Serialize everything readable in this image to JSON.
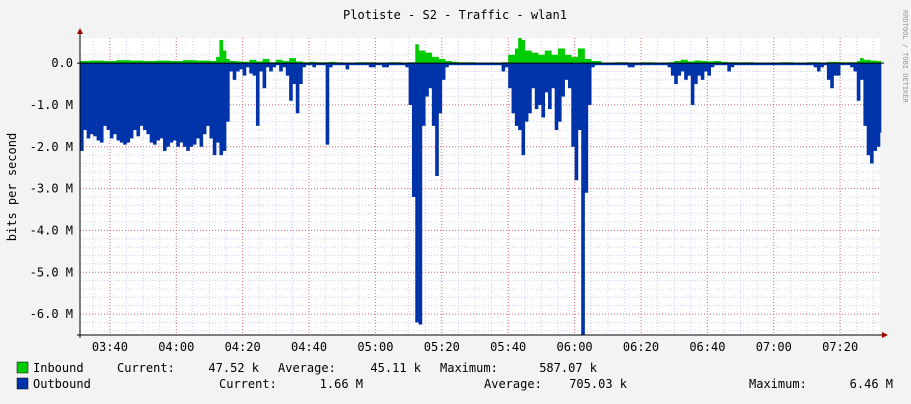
{
  "chart_data": {
    "type": "area",
    "title": "Plotiste - S2 - Traffic - wlan1",
    "ylabel": "bits per second",
    "xlabel": "",
    "credit": "RRDTOOL / TOBI OETIKER",
    "ylim": [
      -6.5,
      0.6
    ],
    "yticks": [
      {
        "value": 0,
        "label": "0.0"
      },
      {
        "value": -1,
        "label": "-1.0 M"
      },
      {
        "value": -2,
        "label": "-2.0 M"
      },
      {
        "value": -3,
        "label": "-3.0 M"
      },
      {
        "value": -4,
        "label": "-4.0 M"
      },
      {
        "value": -5,
        "label": "-5.0 M"
      },
      {
        "value": -6,
        "label": "-6.0 M"
      }
    ],
    "xticks": [
      "03:40",
      "04:00",
      "04:20",
      "04:40",
      "05:00",
      "05:20",
      "05:40",
      "06:00",
      "06:20",
      "06:40",
      "07:00",
      "07:20"
    ],
    "xtick_minutes": [
      220,
      240,
      260,
      280,
      300,
      320,
      340,
      360,
      380,
      400,
      420,
      440
    ],
    "xlim_minutes": [
      211,
      452
    ],
    "grid": true,
    "colors": {
      "inbound": "#00cc00",
      "outbound": "#0033aa",
      "grid_major": "#e07070",
      "grid_minor": "#ccccff",
      "axis": "#000000",
      "background": "#ffffff",
      "arrow": "#a00000"
    },
    "series": [
      {
        "name": "Inbound",
        "unit": "M bits/s",
        "points": [
          [
            211,
            0.05
          ],
          [
            214,
            0.06
          ],
          [
            218,
            0.05
          ],
          [
            222,
            0.07
          ],
          [
            226,
            0.06
          ],
          [
            230,
            0.05
          ],
          [
            234,
            0.06
          ],
          [
            238,
            0.05
          ],
          [
            242,
            0.07
          ],
          [
            246,
            0.06
          ],
          [
            250,
            0.05
          ],
          [
            252,
            0.15
          ],
          [
            253,
            0.55
          ],
          [
            254,
            0.3
          ],
          [
            255,
            0.1
          ],
          [
            256,
            0.05
          ],
          [
            258,
            0.04
          ],
          [
            260,
            0.03
          ],
          [
            262,
            0.08
          ],
          [
            264,
            0.04
          ],
          [
            266,
            0.1
          ],
          [
            268,
            0.02
          ],
          [
            270,
            0.08
          ],
          [
            272,
            0.05
          ],
          [
            274,
            0.12
          ],
          [
            276,
            0.04
          ],
          [
            278,
            0.02
          ],
          [
            280,
            0.03
          ],
          [
            282,
            0.02
          ],
          [
            286,
            0.03
          ],
          [
            288,
            0.02
          ],
          [
            290,
            0.01
          ],
          [
            294,
            0.02
          ],
          [
            298,
            0.02
          ],
          [
            300,
            0.01
          ],
          [
            304,
            0.02
          ],
          [
            308,
            0.01
          ],
          [
            310,
            0.02
          ],
          [
            312,
            0.45
          ],
          [
            313,
            0.3
          ],
          [
            315,
            0.25
          ],
          [
            317,
            0.15
          ],
          [
            319,
            0.1
          ],
          [
            321,
            0.05
          ],
          [
            323,
            0.03
          ],
          [
            325,
            0.02
          ],
          [
            330,
            0.01
          ],
          [
            335,
            0.01
          ],
          [
            338,
            0.02
          ],
          [
            340,
            0.2
          ],
          [
            342,
            0.35
          ],
          [
            343,
            0.6
          ],
          [
            344,
            0.55
          ],
          [
            345,
            0.3
          ],
          [
            347,
            0.25
          ],
          [
            349,
            0.2
          ],
          [
            351,
            0.3
          ],
          [
            353,
            0.2
          ],
          [
            355,
            0.35
          ],
          [
            357,
            0.2
          ],
          [
            359,
            0.15
          ],
          [
            361,
            0.35
          ],
          [
            363,
            0.1
          ],
          [
            365,
            0.05
          ],
          [
            368,
            0.01
          ],
          [
            372,
            0.02
          ],
          [
            376,
            0.01
          ],
          [
            380,
            0.02
          ],
          [
            384,
            0.01
          ],
          [
            388,
            0.02
          ],
          [
            390,
            0.05
          ],
          [
            392,
            0.08
          ],
          [
            394,
            0.04
          ],
          [
            396,
            0.06
          ],
          [
            398,
            0.05
          ],
          [
            400,
            0.04
          ],
          [
            402,
            0.05
          ],
          [
            404,
            0.03
          ],
          [
            406,
            0.02
          ],
          [
            410,
            0.02
          ],
          [
            414,
            0.01
          ],
          [
            418,
            0.01
          ],
          [
            422,
            0.02
          ],
          [
            426,
            0.01
          ],
          [
            430,
            0.02
          ],
          [
            434,
            0.01
          ],
          [
            436,
            0.03
          ],
          [
            440,
            0.02
          ],
          [
            443,
            0.02
          ],
          [
            445,
            0.05
          ],
          [
            446,
            0.12
          ],
          [
            447,
            0.08
          ],
          [
            449,
            0.06
          ],
          [
            451,
            0.05
          ],
          [
            452,
            0.05
          ]
        ]
      },
      {
        "name": "Outbound",
        "unit": "M bits/s",
        "points": [
          [
            211,
            -2.1
          ],
          [
            212,
            -1.6
          ],
          [
            213,
            -1.8
          ],
          [
            214,
            -1.7
          ],
          [
            215,
            -1.75
          ],
          [
            216,
            -1.85
          ],
          [
            217,
            -1.9
          ],
          [
            218,
            -1.5
          ],
          [
            219,
            -1.6
          ],
          [
            220,
            -1.8
          ],
          [
            221,
            -1.7
          ],
          [
            222,
            -1.85
          ],
          [
            223,
            -1.9
          ],
          [
            224,
            -1.95
          ],
          [
            225,
            -1.9
          ],
          [
            226,
            -1.8
          ],
          [
            227,
            -1.6
          ],
          [
            228,
            -1.75
          ],
          [
            229,
            -1.5
          ],
          [
            230,
            -1.6
          ],
          [
            231,
            -1.7
          ],
          [
            232,
            -1.9
          ],
          [
            233,
            -1.95
          ],
          [
            234,
            -1.85
          ],
          [
            235,
            -1.8
          ],
          [
            236,
            -2.1
          ],
          [
            237,
            -2.0
          ],
          [
            238,
            -1.9
          ],
          [
            239,
            -1.85
          ],
          [
            240,
            -2.0
          ],
          [
            241,
            -1.9
          ],
          [
            242,
            -2.0
          ],
          [
            243,
            -2.1
          ],
          [
            244,
            -2.0
          ],
          [
            245,
            -1.95
          ],
          [
            246,
            -1.8
          ],
          [
            247,
            -2.0
          ],
          [
            248,
            -1.7
          ],
          [
            249,
            -1.5
          ],
          [
            250,
            -1.8
          ],
          [
            251,
            -2.2
          ],
          [
            252,
            -1.9
          ],
          [
            253,
            -2.2
          ],
          [
            254,
            -2.1
          ],
          [
            255,
            -1.4
          ],
          [
            256,
            -0.2
          ],
          [
            257,
            -0.4
          ],
          [
            258,
            -0.2
          ],
          [
            259,
            -0.15
          ],
          [
            260,
            -0.3
          ],
          [
            261,
            -0.1
          ],
          [
            262,
            -0.25
          ],
          [
            263,
            -0.3
          ],
          [
            264,
            -1.5
          ],
          [
            265,
            -0.2
          ],
          [
            266,
            -0.6
          ],
          [
            267,
            -0.1
          ],
          [
            268,
            -0.2
          ],
          [
            269,
            -0.1
          ],
          [
            270,
            -0.05
          ],
          [
            271,
            -0.2
          ],
          [
            272,
            -0.1
          ],
          [
            273,
            -0.3
          ],
          [
            274,
            -0.9
          ],
          [
            275,
            -0.5
          ],
          [
            276,
            -1.2
          ],
          [
            277,
            -0.5
          ],
          [
            278,
            -0.1
          ],
          [
            279,
            -0.05
          ],
          [
            280,
            -0.05
          ],
          [
            281,
            -0.1
          ],
          [
            282,
            -0.05
          ],
          [
            284,
            -0.05
          ],
          [
            285,
            -1.95
          ],
          [
            286,
            -0.1
          ],
          [
            287,
            -0.05
          ],
          [
            288,
            -0.05
          ],
          [
            290,
            -0.05
          ],
          [
            291,
            -0.15
          ],
          [
            292,
            -0.05
          ],
          [
            294,
            -0.05
          ],
          [
            296,
            -0.05
          ],
          [
            298,
            -0.1
          ],
          [
            300,
            -0.05
          ],
          [
            302,
            -0.1
          ],
          [
            304,
            -0.05
          ],
          [
            306,
            -0.05
          ],
          [
            308,
            -0.05
          ],
          [
            309,
            -0.1
          ],
          [
            310,
            -1.0
          ],
          [
            311,
            -3.2
          ],
          [
            312,
            -6.2
          ],
          [
            313,
            -6.25
          ],
          [
            314,
            -1.5
          ],
          [
            315,
            -0.8
          ],
          [
            316,
            -0.6
          ],
          [
            317,
            -1.5
          ],
          [
            318,
            -2.7
          ],
          [
            319,
            -1.2
          ],
          [
            320,
            -0.4
          ],
          [
            321,
            -0.1
          ],
          [
            322,
            -0.05
          ],
          [
            324,
            -0.05
          ],
          [
            326,
            -0.05
          ],
          [
            328,
            -0.05
          ],
          [
            330,
            -0.05
          ],
          [
            332,
            -0.05
          ],
          [
            334,
            -0.05
          ],
          [
            336,
            -0.05
          ],
          [
            338,
            -0.2
          ],
          [
            339,
            -0.1
          ],
          [
            340,
            -0.6
          ],
          [
            341,
            -1.2
          ],
          [
            342,
            -1.5
          ],
          [
            343,
            -1.6
          ],
          [
            344,
            -2.2
          ],
          [
            345,
            -1.4
          ],
          [
            346,
            -1.2
          ],
          [
            347,
            -0.6
          ],
          [
            348,
            -1.1
          ],
          [
            349,
            -1.0
          ],
          [
            350,
            -1.3
          ],
          [
            351,
            -0.7
          ],
          [
            352,
            -1.1
          ],
          [
            353,
            -0.6
          ],
          [
            354,
            -1.6
          ],
          [
            355,
            -1.4
          ],
          [
            356,
            -0.8
          ],
          [
            357,
            -0.4
          ],
          [
            358,
            -0.6
          ],
          [
            359,
            -2.0
          ],
          [
            360,
            -2.8
          ],
          [
            361,
            -1.6
          ],
          [
            362,
            -6.5
          ],
          [
            363,
            -3.1
          ],
          [
            364,
            -1.0
          ],
          [
            365,
            -0.1
          ],
          [
            366,
            -0.05
          ],
          [
            368,
            -0.05
          ],
          [
            370,
            -0.05
          ],
          [
            372,
            -0.05
          ],
          [
            374,
            -0.05
          ],
          [
            376,
            -0.1
          ],
          [
            378,
            -0.05
          ],
          [
            380,
            -0.05
          ],
          [
            382,
            -0.05
          ],
          [
            384,
            -0.05
          ],
          [
            386,
            -0.05
          ],
          [
            388,
            -0.1
          ],
          [
            389,
            -0.3
          ],
          [
            390,
            -0.5
          ],
          [
            391,
            -0.3
          ],
          [
            392,
            -0.2
          ],
          [
            393,
            -0.4
          ],
          [
            394,
            -0.3
          ],
          [
            395,
            -1.0
          ],
          [
            396,
            -0.5
          ],
          [
            397,
            -0.3
          ],
          [
            398,
            -0.4
          ],
          [
            399,
            -0.2
          ],
          [
            400,
            -0.3
          ],
          [
            401,
            -0.1
          ],
          [
            402,
            -0.05
          ],
          [
            404,
            -0.05
          ],
          [
            406,
            -0.2
          ],
          [
            407,
            -0.1
          ],
          [
            408,
            -0.05
          ],
          [
            410,
            -0.05
          ],
          [
            412,
            -0.05
          ],
          [
            414,
            -0.05
          ],
          [
            416,
            -0.05
          ],
          [
            418,
            -0.05
          ],
          [
            420,
            -0.05
          ],
          [
            422,
            -0.05
          ],
          [
            424,
            -0.05
          ],
          [
            426,
            -0.05
          ],
          [
            428,
            -0.05
          ],
          [
            430,
            -0.05
          ],
          [
            432,
            -0.1
          ],
          [
            433,
            -0.2
          ],
          [
            434,
            -0.1
          ],
          [
            435,
            -0.05
          ],
          [
            436,
            -0.4
          ],
          [
            437,
            -0.6
          ],
          [
            438,
            -0.3
          ],
          [
            440,
            -0.05
          ],
          [
            442,
            -0.05
          ],
          [
            443,
            -0.1
          ],
          [
            444,
            -0.2
          ],
          [
            445,
            -0.9
          ],
          [
            446,
            -0.4
          ],
          [
            447,
            -1.5
          ],
          [
            448,
            -2.2
          ],
          [
            449,
            -2.4
          ],
          [
            450,
            -2.1
          ],
          [
            451,
            -2.0
          ],
          [
            452,
            -1.66
          ]
        ]
      }
    ],
    "legend": [
      {
        "name": "Inbound",
        "current": "47.52 k",
        "average": "45.11 k",
        "maximum": "587.07 k"
      },
      {
        "name": "Outbound",
        "current": "1.66 M",
        "average": "705.03 k",
        "maximum": "6.46 M"
      }
    ],
    "legend_labels": {
      "current": "Current:",
      "average": "Average:",
      "maximum": "Maximum:"
    }
  }
}
